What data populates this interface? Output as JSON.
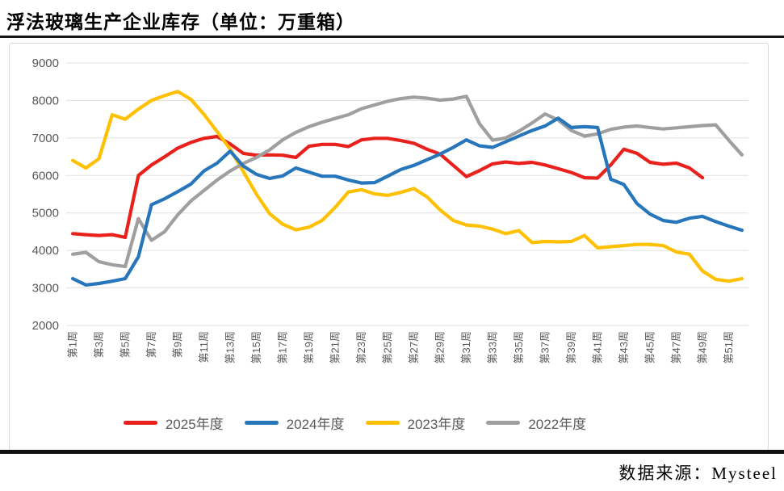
{
  "title": "浮法玻璃生产企业库存（单位：万重箱）",
  "source": "数据来源：Mysteel",
  "chart_data": {
    "type": "line",
    "title": "浮法玻璃生产企业库存（单位：万重箱）",
    "unit": "万重箱",
    "weeks": 52,
    "ylim": [
      2000,
      9000
    ],
    "y_ticks": [
      9000,
      8000,
      7000,
      6000,
      5000,
      4000,
      3000,
      2000
    ],
    "grid": "horizontal",
    "legend_position": "bottom",
    "x_tick_weeks": [
      1,
      3,
      5,
      7,
      9,
      11,
      13,
      15,
      17,
      19,
      21,
      23,
      25,
      27,
      29,
      31,
      33,
      35,
      37,
      39,
      41,
      43,
      45,
      47,
      49,
      51
    ],
    "x_tick_labels": [
      "第1周",
      "第3周",
      "第5周",
      "第7周",
      "第9周",
      "第11周",
      "第13周",
      "第15周",
      "第17周",
      "第19周",
      "第21周",
      "第23周",
      "第25周",
      "第27周",
      "第29周",
      "第31周",
      "第33周",
      "第35周",
      "第37周",
      "第39周",
      "第41周",
      "第43周",
      "第45周",
      "第47周",
      "第49周",
      "第51周"
    ],
    "colors": {
      "grid": "#e1e1e1",
      "axis_text": "#595959"
    },
    "series": [
      {
        "name": "2025年度",
        "color": "#e8211d",
        "values": [
          4450,
          4420,
          4400,
          4420,
          4350,
          6000,
          6280,
          6500,
          6730,
          6880,
          6990,
          7040,
          6840,
          6590,
          6540,
          6550,
          6540,
          6480,
          6780,
          6830,
          6830,
          6770,
          6950,
          6990,
          6990,
          6930,
          6860,
          6700,
          6570,
          6270,
          5970,
          6130,
          6310,
          6360,
          6320,
          6350,
          6280,
          6180,
          6080,
          5940,
          5930,
          6280,
          6700,
          6590,
          6350,
          6300,
          6330,
          6200,
          5940
        ]
      },
      {
        "name": "2024年度",
        "color": "#2776bb",
        "values": [
          3250,
          3080,
          3120,
          3180,
          3250,
          3830,
          5220,
          5380,
          5570,
          5770,
          6120,
          6330,
          6650,
          6250,
          6030,
          5920,
          5990,
          6200,
          6090,
          5980,
          5980,
          5880,
          5800,
          5810,
          5980,
          6160,
          6270,
          6420,
          6570,
          6750,
          6950,
          6790,
          6750,
          6900,
          7050,
          7200,
          7320,
          7530,
          7280,
          7300,
          7280,
          5900,
          5760,
          5250,
          4970,
          4800,
          4750,
          4860,
          4910,
          4770,
          4650,
          4540
        ]
      },
      {
        "name": "2023年度",
        "color": "#ffc000",
        "values": [
          6400,
          6200,
          6450,
          7620,
          7500,
          7770,
          8000,
          8130,
          8240,
          8030,
          7630,
          7170,
          6700,
          6100,
          5500,
          4980,
          4700,
          4550,
          4620,
          4800,
          5150,
          5560,
          5620,
          5510,
          5470,
          5550,
          5650,
          5430,
          5080,
          4800,
          4680,
          4650,
          4570,
          4450,
          4530,
          4210,
          4240,
          4230,
          4240,
          4400,
          4070,
          4100,
          4130,
          4160,
          4160,
          4130,
          3960,
          3900,
          3450,
          3230,
          3180,
          3250
        ]
      },
      {
        "name": "2022年度",
        "color": "#9f9f9f",
        "values": [
          3900,
          3950,
          3700,
          3620,
          3570,
          4850,
          4270,
          4500,
          4950,
          5320,
          5600,
          5880,
          6120,
          6320,
          6480,
          6680,
          6950,
          7150,
          7300,
          7420,
          7520,
          7620,
          7780,
          7880,
          7980,
          8050,
          8090,
          8060,
          8010,
          8040,
          8110,
          7380,
          6940,
          7000,
          7180,
          7400,
          7640,
          7480,
          7200,
          7050,
          7110,
          7230,
          7290,
          7320,
          7280,
          7240,
          7270,
          7300,
          7330,
          7350,
          6940,
          6550
        ]
      }
    ]
  }
}
